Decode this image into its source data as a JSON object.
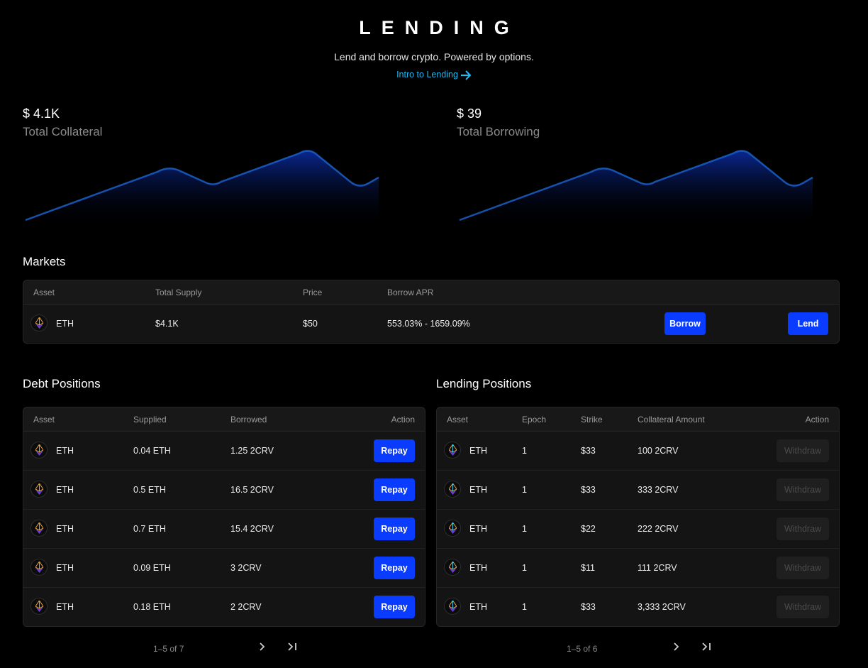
{
  "header": {
    "title": "LENDING",
    "subtitle": "Lend and borrow crypto. Powered by options.",
    "intro_link": "Intro to Lending"
  },
  "stats": {
    "collateral": {
      "value": "$ 4.1K",
      "label": "Total Collateral"
    },
    "borrowing": {
      "value": "$ 39",
      "label": "Total Borrowing"
    }
  },
  "colors": {
    "accent": "#0a3cff",
    "link": "#22b8f0",
    "chart_line": "#1a6fd8",
    "chart_fill": "#0a2a8a"
  },
  "markets": {
    "title": "Markets",
    "headers": [
      "Asset",
      "Total Supply",
      "Price",
      "Borrow APR"
    ],
    "rows": [
      {
        "icon": "eth-icon",
        "asset": "ETH",
        "supply": "$4.1K",
        "price": "$50",
        "apr": "553.03% - 1659.09%",
        "borrow_label": "Borrow",
        "lend_label": "Lend"
      }
    ]
  },
  "debt": {
    "title": "Debt Positions",
    "headers": [
      "Asset",
      "Supplied",
      "Borrowed",
      "Action"
    ],
    "rows": [
      {
        "asset": "ETH",
        "supplied": "0.04 ETH",
        "borrowed": "1.25 2CRV",
        "action": "Repay"
      },
      {
        "asset": "ETH",
        "supplied": "0.5 ETH",
        "borrowed": "16.5 2CRV",
        "action": "Repay"
      },
      {
        "asset": "ETH",
        "supplied": "0.7 ETH",
        "borrowed": "15.4 2CRV",
        "action": "Repay"
      },
      {
        "asset": "ETH",
        "supplied": "0.09 ETH",
        "borrowed": "3 2CRV",
        "action": "Repay"
      },
      {
        "asset": "ETH",
        "supplied": "0.18 ETH",
        "borrowed": "2 2CRV",
        "action": "Repay"
      }
    ],
    "pager": "1–5 of 7"
  },
  "lending": {
    "title": "Lending Positions",
    "headers": [
      "Asset",
      "Epoch",
      "Strike",
      "Collateral Amount",
      "Action"
    ],
    "rows": [
      {
        "asset": "ETH",
        "epoch": "1",
        "strike": "$33",
        "amount": "100 2CRV",
        "action": "Withdraw"
      },
      {
        "asset": "ETH",
        "epoch": "1",
        "strike": "$33",
        "amount": "333 2CRV",
        "action": "Withdraw"
      },
      {
        "asset": "ETH",
        "epoch": "1",
        "strike": "$22",
        "amount": "222 2CRV",
        "action": "Withdraw"
      },
      {
        "asset": "ETH",
        "epoch": "1",
        "strike": "$11",
        "amount": "111 2CRV",
        "action": "Withdraw"
      },
      {
        "asset": "ETH",
        "epoch": "1",
        "strike": "$33",
        "amount": "3,333 2CRV",
        "action": "Withdraw"
      }
    ],
    "pager": "1–5 of 6"
  }
}
